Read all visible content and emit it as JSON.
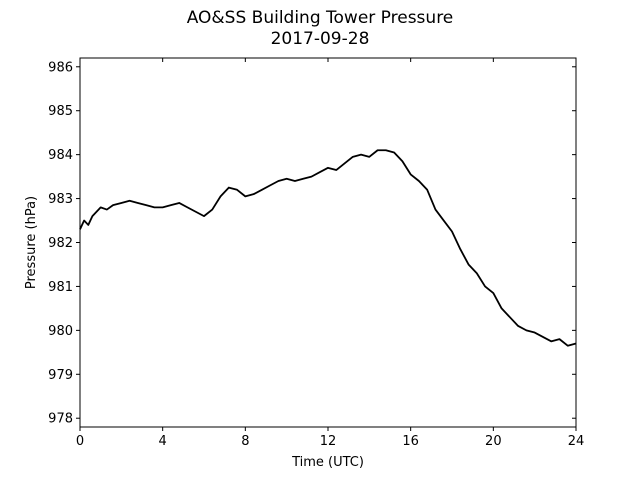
{
  "chart_data": {
    "type": "line",
    "title": "AO&SS Building Tower Pressure",
    "subtitle": "2017-09-28",
    "xlabel": "Time (UTC)",
    "ylabel": "Pressure (hPa)",
    "xlim": [
      0,
      24
    ],
    "ylim": [
      977.8,
      986.2
    ],
    "xticks": [
      0,
      4,
      8,
      12,
      16,
      20,
      24
    ],
    "yticks": [
      978,
      979,
      980,
      981,
      982,
      983,
      984,
      985,
      986
    ],
    "grid": false,
    "line_color": "#000000",
    "series": [
      {
        "x": [
          0,
          0.2,
          0.4,
          0.6,
          0.8,
          1.0,
          1.3,
          1.6,
          2.0,
          2.4,
          2.8,
          3.2,
          3.6,
          4.0,
          4.4,
          4.8,
          5.2,
          5.6,
          6.0,
          6.4,
          6.8,
          7.2,
          7.6,
          8.0,
          8.4,
          8.8,
          9.2,
          9.6,
          10.0,
          10.4,
          10.8,
          11.2,
          11.6,
          12.0,
          12.4,
          12.8,
          13.2,
          13.6,
          14.0,
          14.4,
          14.8,
          15.2,
          15.6,
          16.0,
          16.4,
          16.8,
          17.2,
          17.6,
          18.0,
          18.4,
          18.8,
          19.2,
          19.6,
          20.0,
          20.4,
          20.8,
          21.2,
          21.6,
          22.0,
          22.4,
          22.8,
          23.2,
          23.6,
          24.0
        ],
        "values": [
          982.3,
          982.5,
          982.4,
          982.6,
          982.7,
          982.8,
          982.75,
          982.85,
          982.9,
          982.95,
          982.9,
          982.85,
          982.8,
          982.8,
          982.85,
          982.9,
          982.8,
          982.7,
          982.6,
          982.75,
          983.05,
          983.25,
          983.2,
          983.05,
          983.1,
          983.2,
          983.3,
          983.4,
          983.45,
          983.4,
          983.45,
          983.5,
          983.6,
          983.7,
          983.65,
          983.8,
          983.95,
          984.0,
          983.95,
          984.1,
          984.1,
          984.05,
          983.85,
          983.55,
          983.4,
          983.2,
          982.75,
          982.5,
          982.25,
          981.85,
          981.5,
          981.3,
          981.0,
          980.85,
          980.5,
          980.3,
          980.1,
          980.0,
          979.95,
          979.85,
          979.75,
          979.8,
          979.65,
          979.7
        ]
      }
    ]
  }
}
